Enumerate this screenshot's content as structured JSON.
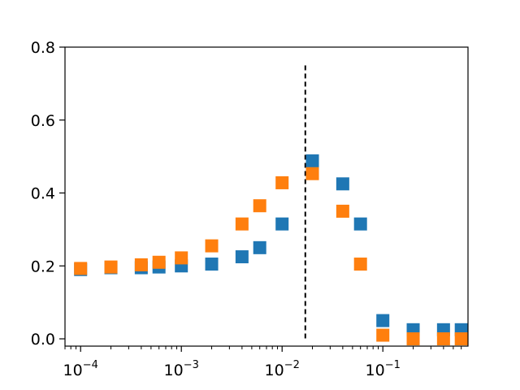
{
  "chart_data": {
    "type": "scatter",
    "title": "",
    "xlabel": "",
    "ylabel": "",
    "xscale": "log",
    "xlim": [
      7e-05,
      0.7
    ],
    "ylim": [
      -0.02,
      0.8
    ],
    "grid": false,
    "legend": null,
    "x_ticks": [
      {
        "value": 0.0001,
        "base": "10",
        "exp": "−4"
      },
      {
        "value": 0.001,
        "base": "10",
        "exp": "−3"
      },
      {
        "value": 0.01,
        "base": "10",
        "exp": "−2"
      },
      {
        "value": 0.1,
        "base": "10",
        "exp": "−1"
      }
    ],
    "y_ticks": [
      {
        "value": 0.0,
        "label": "0.0"
      },
      {
        "value": 0.2,
        "label": "0.2"
      },
      {
        "value": 0.4,
        "label": "0.4"
      },
      {
        "value": 0.6,
        "label": "0.6"
      },
      {
        "value": 0.8,
        "label": "0.8"
      }
    ],
    "vline": {
      "x": 0.017,
      "y_from": 0.0,
      "y_to": 0.75,
      "style": "dashed",
      "color": "#000000"
    },
    "marker": "square",
    "series": [
      {
        "color": "#1f77b4",
        "x": [
          0.0001,
          0.0002,
          0.0004,
          0.0006,
          0.001,
          0.002,
          0.004,
          0.006,
          0.01,
          0.02,
          0.04,
          0.06,
          0.1,
          0.2,
          0.4,
          0.6
        ],
        "y": [
          0.19,
          0.195,
          0.195,
          0.197,
          0.2,
          0.205,
          0.225,
          0.25,
          0.315,
          0.488,
          0.425,
          0.315,
          0.05,
          0.025,
          0.025,
          0.025
        ]
      },
      {
        "color": "#ff7f0e",
        "x": [
          0.0001,
          0.0002,
          0.0004,
          0.0006,
          0.001,
          0.002,
          0.004,
          0.006,
          0.01,
          0.02,
          0.04,
          0.06,
          0.1,
          0.2,
          0.4,
          0.6
        ],
        "y": [
          0.193,
          0.197,
          0.203,
          0.21,
          0.222,
          0.255,
          0.315,
          0.365,
          0.428,
          0.453,
          0.35,
          0.205,
          0.01,
          0.0,
          0.0,
          0.0
        ]
      }
    ]
  }
}
